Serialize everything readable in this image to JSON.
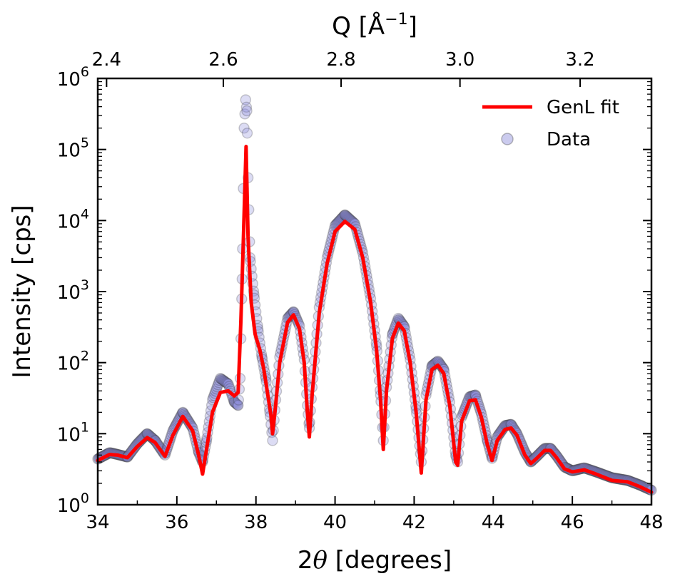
{
  "chart_data": {
    "type": "scatter",
    "title": "",
    "xlabel": "2θ [degrees]",
    "xlabel_parts": {
      "prefix": "2",
      "symbol": "θ",
      "suffix": " [degrees]"
    },
    "ylabel": "Intensity [cps]",
    "top_xlabel": "Q [Å⁻¹]",
    "top_xlabel_parts": {
      "base": "Q [Å",
      "sup": "−1",
      "end": "]"
    },
    "xlim": [
      34,
      48
    ],
    "ylim": [
      1,
      1000000
    ],
    "yscale": "log",
    "top_xlim": [
      2.355,
      3.333
    ],
    "x_ticks": [
      "34",
      "36",
      "38",
      "40",
      "42",
      "44",
      "46",
      "48"
    ],
    "top_ticks": [
      "2.4",
      "2.6",
      "2.8",
      "3.0",
      "3.2"
    ],
    "y_ticks": [
      {
        "base": "10",
        "exp": "0"
      },
      {
        "base": "10",
        "exp": "1"
      },
      {
        "base": "10",
        "exp": "2"
      },
      {
        "base": "10",
        "exp": "3"
      },
      {
        "base": "10",
        "exp": "4"
      },
      {
        "base": "10",
        "exp": "5"
      },
      {
        "base": "10",
        "exp": "6"
      }
    ],
    "legend": {
      "position": "top-right",
      "entries": [
        {
          "label": "GenL fit",
          "kind": "line",
          "color": "#ff0000"
        },
        {
          "label": "Data",
          "kind": "marker",
          "color": "#8c8cd9"
        }
      ]
    },
    "series": [
      {
        "name": "GenL fit",
        "kind": "line",
        "color": "#ff0000",
        "points": [
          [
            34.0,
            4.2
          ],
          [
            34.3,
            5.1
          ],
          [
            34.5,
            5.0
          ],
          [
            34.75,
            4.6
          ],
          [
            35.0,
            6.6
          ],
          [
            35.25,
            8.8
          ],
          [
            35.45,
            7.5
          ],
          [
            35.7,
            4.8
          ],
          [
            35.9,
            9.5
          ],
          [
            36.15,
            17.5
          ],
          [
            36.4,
            11
          ],
          [
            36.55,
            5
          ],
          [
            36.65,
            2.7
          ],
          [
            36.75,
            6
          ],
          [
            36.9,
            20
          ],
          [
            37.1,
            38
          ],
          [
            37.3,
            40
          ],
          [
            37.45,
            34
          ],
          [
            37.55,
            38
          ],
          [
            37.62,
            400
          ],
          [
            37.68,
            5000
          ],
          [
            37.75,
            110000
          ],
          [
            37.8,
            6000
          ],
          [
            37.88,
            700
          ],
          [
            37.98,
            250
          ],
          [
            38.1,
            150
          ],
          [
            38.2,
            80
          ],
          [
            38.3,
            35
          ],
          [
            38.38,
            18
          ],
          [
            38.42,
            10
          ],
          [
            38.48,
            20
          ],
          [
            38.6,
            100
          ],
          [
            38.8,
            370
          ],
          [
            38.95,
            470
          ],
          [
            39.1,
            300
          ],
          [
            39.22,
            100
          ],
          [
            39.3,
            20
          ],
          [
            39.35,
            9
          ],
          [
            39.42,
            35
          ],
          [
            39.6,
            500
          ],
          [
            39.8,
            2500
          ],
          [
            40.0,
            7000
          ],
          [
            40.25,
            9700
          ],
          [
            40.5,
            7500
          ],
          [
            40.7,
            3000
          ],
          [
            40.9,
            700
          ],
          [
            41.05,
            150
          ],
          [
            41.15,
            30
          ],
          [
            41.22,
            6
          ],
          [
            41.3,
            40
          ],
          [
            41.45,
            220
          ],
          [
            41.6,
            360
          ],
          [
            41.75,
            280
          ],
          [
            41.9,
            100
          ],
          [
            42.05,
            20
          ],
          [
            42.18,
            2.8
          ],
          [
            42.3,
            30
          ],
          [
            42.45,
            80
          ],
          [
            42.6,
            92
          ],
          [
            42.75,
            70
          ],
          [
            42.9,
            25
          ],
          [
            43.05,
            4
          ],
          [
            43.1,
            3.6
          ],
          [
            43.2,
            15
          ],
          [
            43.4,
            29
          ],
          [
            43.55,
            30
          ],
          [
            43.7,
            17
          ],
          [
            43.85,
            7
          ],
          [
            43.97,
            4.2
          ],
          [
            44.1,
            8
          ],
          [
            44.3,
            11.5
          ],
          [
            44.45,
            12
          ],
          [
            44.6,
            9.5
          ],
          [
            44.8,
            5
          ],
          [
            44.95,
            3.8
          ],
          [
            45.1,
            4.5
          ],
          [
            45.3,
            5.8
          ],
          [
            45.45,
            5.8
          ],
          [
            45.6,
            4.6
          ],
          [
            45.8,
            3.2
          ],
          [
            46.0,
            2.9
          ],
          [
            46.3,
            3.1
          ],
          [
            46.6,
            2.7
          ],
          [
            47.0,
            2.2
          ],
          [
            47.4,
            2.1
          ],
          [
            47.7,
            1.8
          ],
          [
            48.0,
            1.5
          ]
        ]
      },
      {
        "name": "Data",
        "kind": "scatter",
        "color": "#8c8cd9",
        "points": [
          [
            34.0,
            4.4
          ],
          [
            34.3,
            5.4
          ],
          [
            34.5,
            5.1
          ],
          [
            34.75,
            4.7
          ],
          [
            35.0,
            7.2
          ],
          [
            35.25,
            10
          ],
          [
            35.45,
            8
          ],
          [
            35.7,
            5
          ],
          [
            35.9,
            11
          ],
          [
            36.15,
            20
          ],
          [
            36.4,
            12
          ],
          [
            36.55,
            5.5
          ],
          [
            36.65,
            4
          ],
          [
            36.75,
            8
          ],
          [
            36.9,
            30
          ],
          [
            37.1,
            60
          ],
          [
            37.3,
            50
          ],
          [
            37.45,
            28
          ],
          [
            37.55,
            25
          ],
          [
            37.6,
            60
          ],
          [
            37.65,
            1500
          ],
          [
            37.7,
            200000
          ],
          [
            37.74,
            500000
          ],
          [
            37.77,
            350000
          ],
          [
            37.8,
            40000
          ],
          [
            37.85,
            3000
          ],
          [
            37.95,
            900
          ],
          [
            38.05,
            300
          ],
          [
            38.15,
            120
          ],
          [
            38.25,
            60
          ],
          [
            38.35,
            20
          ],
          [
            38.42,
            8
          ],
          [
            38.5,
            30
          ],
          [
            38.6,
            120
          ],
          [
            38.8,
            420
          ],
          [
            38.95,
            520
          ],
          [
            39.1,
            330
          ],
          [
            39.22,
            110
          ],
          [
            39.3,
            25
          ],
          [
            39.35,
            12
          ],
          [
            39.42,
            45
          ],
          [
            39.6,
            600
          ],
          [
            39.8,
            3000
          ],
          [
            40.0,
            8500
          ],
          [
            40.25,
            12000
          ],
          [
            40.5,
            9000
          ],
          [
            40.7,
            3500
          ],
          [
            40.9,
            800
          ],
          [
            41.05,
            170
          ],
          [
            41.15,
            35
          ],
          [
            41.22,
            8
          ],
          [
            41.3,
            45
          ],
          [
            41.45,
            250
          ],
          [
            41.6,
            420
          ],
          [
            41.75,
            320
          ],
          [
            41.9,
            110
          ],
          [
            42.05,
            22
          ],
          [
            42.18,
            4
          ],
          [
            42.3,
            35
          ],
          [
            42.45,
            90
          ],
          [
            42.6,
            105
          ],
          [
            42.75,
            80
          ],
          [
            42.9,
            28
          ],
          [
            43.05,
            5
          ],
          [
            43.1,
            4
          ],
          [
            43.2,
            17
          ],
          [
            43.4,
            33
          ],
          [
            43.55,
            35
          ],
          [
            43.7,
            19
          ],
          [
            43.85,
            8
          ],
          [
            43.97,
            4.5
          ],
          [
            44.1,
            9
          ],
          [
            44.3,
            13
          ],
          [
            44.45,
            13.5
          ],
          [
            44.6,
            10
          ],
          [
            44.8,
            5.5
          ],
          [
            44.95,
            4
          ],
          [
            45.1,
            4.8
          ],
          [
            45.3,
            6.2
          ],
          [
            45.45,
            6.2
          ],
          [
            45.6,
            4.9
          ],
          [
            45.8,
            3.4
          ],
          [
            46.0,
            3.0
          ],
          [
            46.3,
            3.3
          ],
          [
            46.6,
            2.9
          ],
          [
            47.0,
            2.4
          ],
          [
            47.4,
            2.2
          ],
          [
            47.7,
            1.9
          ],
          [
            48.0,
            1.6
          ]
        ]
      }
    ]
  }
}
